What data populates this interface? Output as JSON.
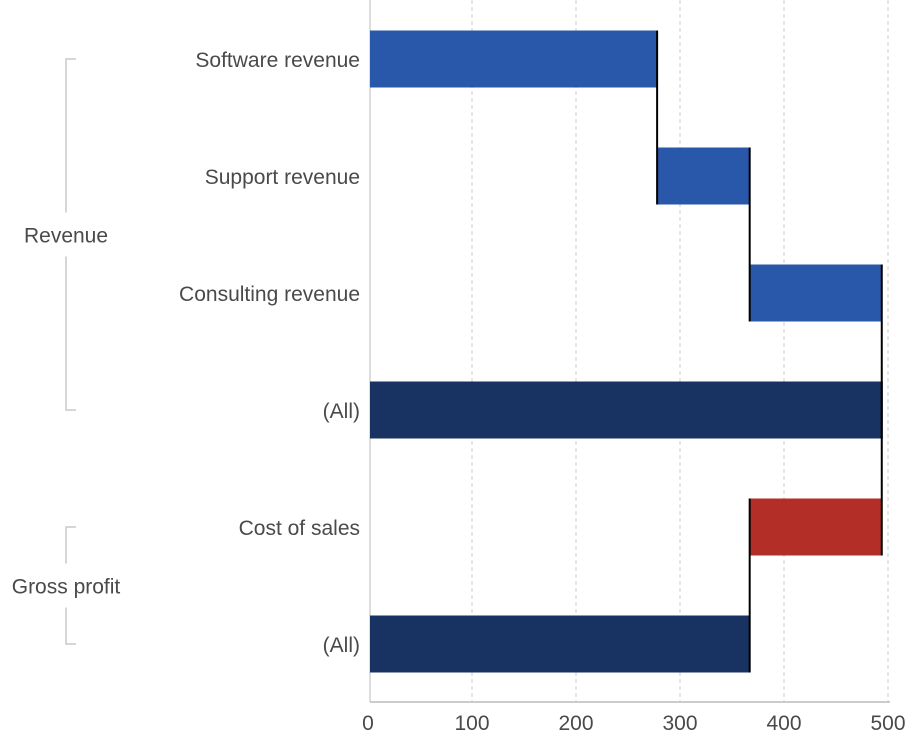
{
  "chart_data": {
    "type": "waterfall",
    "orientation": "horizontal",
    "xlim": [
      0,
      500
    ],
    "xticks": [
      0,
      100,
      200,
      300,
      400,
      500
    ],
    "grid": true,
    "groups": [
      {
        "label": "Revenue",
        "rows": [
          0,
          1,
          2,
          3
        ]
      },
      {
        "label": "Gross profit",
        "rows": [
          4,
          5
        ]
      }
    ],
    "rows": [
      {
        "label": "Software revenue",
        "value": 278,
        "kind": "increase"
      },
      {
        "label": "Support revenue",
        "value": 89,
        "kind": "increase"
      },
      {
        "label": "Consulting revenue",
        "value": 127,
        "kind": "increase"
      },
      {
        "label": "(All)",
        "value": 494,
        "kind": "total"
      },
      {
        "label": "Cost of sales",
        "value": -127,
        "kind": "decrease"
      },
      {
        "label": "(All)",
        "value": 367,
        "kind": "total"
      }
    ],
    "colors": {
      "increase": "#2957a9",
      "decrease": "#b32e27",
      "total": "#183362",
      "connector": "#000000",
      "grid": "#dddddd"
    }
  }
}
